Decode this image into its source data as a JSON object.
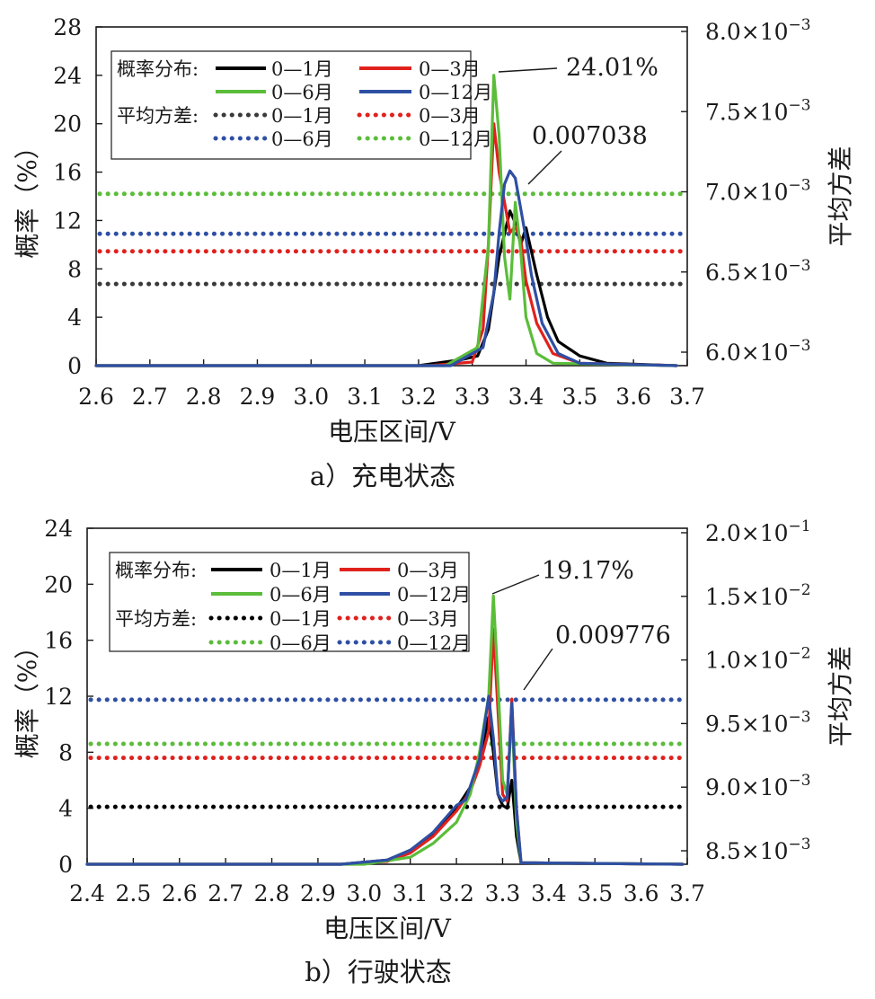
{
  "chart_data": [
    {
      "type": "line",
      "caption": "a）充电状态",
      "xlabel": "电压区间/V",
      "ylabel": "概率（%）",
      "y2label": "平均方差",
      "xlim": [
        2.6,
        3.7
      ],
      "xticks": [
        "2.6",
        "2.7",
        "2.8",
        "2.9",
        "3.0",
        "3.1",
        "3.2",
        "3.3",
        "3.4",
        "3.5",
        "3.6",
        "3.7"
      ],
      "ylim": [
        0,
        28
      ],
      "yticks": [
        "0",
        "4",
        "8",
        "12",
        "16",
        "20",
        "24",
        "28"
      ],
      "y2ticks": [
        {
          "m": "6.0",
          "e": "−3"
        },
        {
          "m": "6.5",
          "e": "−3"
        },
        {
          "m": "7.0",
          "e": "−3"
        },
        {
          "m": "7.5",
          "e": "−3"
        },
        {
          "m": "8.0",
          "e": "−3"
        }
      ],
      "legend": {
        "prob_title": "概率分布:",
        "var_title": "平均方差:",
        "prob_items": [
          {
            "name": "0—1月",
            "color": "#000000"
          },
          {
            "name": "0—3月",
            "color": "#e0211d"
          },
          {
            "name": "0—6月",
            "color": "#5bbd3a"
          },
          {
            "name": "0—12月",
            "color": "#2e4fa3"
          }
        ],
        "var_items": [
          {
            "name": "0—1月",
            "color": "#3a3a3a"
          },
          {
            "name": "0—3月",
            "color": "#e0211d"
          },
          {
            "name": "0—6月",
            "color": "#2e4fa3"
          },
          {
            "name": "0—12月",
            "color": "#5bbd3a"
          }
        ]
      },
      "variance_lines": [
        {
          "name": "0—1月",
          "color": "#3a3a3a",
          "y": 6.75
        },
        {
          "name": "0—3月",
          "color": "#e0211d",
          "y": 9.45
        },
        {
          "name": "0—6月",
          "color": "#2e4fa3",
          "y": 10.9
        },
        {
          "name": "0—12月",
          "color": "#5bbd3a",
          "y": 14.2
        }
      ],
      "series": [
        {
          "name": "0—1月",
          "color": "#000000",
          "x": [
            2.6,
            3.2,
            3.28,
            3.31,
            3.33,
            3.35,
            3.37,
            3.38,
            3.39,
            3.4,
            3.42,
            3.44,
            3.46,
            3.5,
            3.55,
            3.68
          ],
          "y": [
            0,
            0,
            0.5,
            0.8,
            3.0,
            9.0,
            12.8,
            11.8,
            10.0,
            11.4,
            7.5,
            4.0,
            2.0,
            0.8,
            0.2,
            0
          ]
        },
        {
          "name": "0—3月",
          "color": "#e0211d",
          "x": [
            2.6,
            3.22,
            3.3,
            3.32,
            3.33,
            3.34,
            3.35,
            3.36,
            3.37,
            3.38,
            3.39,
            3.4,
            3.42,
            3.45,
            3.5,
            3.68
          ],
          "y": [
            0,
            0,
            0.3,
            3.0,
            10.0,
            20.0,
            16.0,
            13.5,
            11.0,
            11.5,
            10.5,
            7.0,
            3.5,
            1.0,
            0.2,
            0
          ]
        },
        {
          "name": "0—6月",
          "color": "#5bbd3a",
          "x": [
            2.6,
            3.25,
            3.31,
            3.33,
            3.34,
            3.35,
            3.36,
            3.37,
            3.38,
            3.39,
            3.4,
            3.42,
            3.45,
            3.68
          ],
          "y": [
            0,
            0,
            1.5,
            10.0,
            24.01,
            19.0,
            9.0,
            5.5,
            13.5,
            9.5,
            4.0,
            1.0,
            0.2,
            0
          ]
        },
        {
          "name": "0—12月",
          "color": "#2e4fa3",
          "x": [
            2.6,
            3.26,
            3.32,
            3.34,
            3.35,
            3.36,
            3.37,
            3.38,
            3.39,
            3.4,
            3.41,
            3.43,
            3.46,
            3.5,
            3.68
          ],
          "y": [
            0,
            0,
            1.5,
            6.0,
            11.0,
            15.0,
            16.1,
            15.5,
            13.0,
            10.5,
            7.5,
            3.5,
            1.0,
            0.2,
            0
          ]
        }
      ],
      "annotations": [
        {
          "text": "24.01%",
          "x": 3.345,
          "y": 24.01
        },
        {
          "text": "0.007038",
          "x": 3.39,
          "y": 14.2
        }
      ]
    },
    {
      "type": "line",
      "caption": "b）行驶状态",
      "xlabel": "电压区间/V",
      "ylabel": "概率（%）",
      "y2label": "平均方差",
      "xlim": [
        2.4,
        3.7
      ],
      "xticks": [
        "2.4",
        "2.5",
        "2.6",
        "2.7",
        "2.8",
        "2.9",
        "3.0",
        "3.1",
        "3.2",
        "3.3",
        "3.4",
        "3.5",
        "3.6",
        "3.7"
      ],
      "ylim": [
        0,
        24
      ],
      "yticks": [
        "0",
        "4",
        "8",
        "12",
        "16",
        "20",
        "24"
      ],
      "y2ticks": [
        {
          "m": "8.5",
          "e": "−3"
        },
        {
          "m": "9.0",
          "e": "−3"
        },
        {
          "m": "9.5",
          "e": "−3"
        },
        {
          "m": "1.0",
          "e": "−2"
        },
        {
          "m": "1.5",
          "e": "−2"
        },
        {
          "m": "2.0",
          "e": "−1"
        }
      ],
      "legend": {
        "prob_title": "概率分布:",
        "var_title": "平均方差:",
        "prob_items": [
          {
            "name": "0—1月",
            "color": "#000000"
          },
          {
            "name": "0—3月",
            "color": "#e0211d"
          },
          {
            "name": "0—6月",
            "color": "#5bbd3a"
          },
          {
            "name": "0—12月",
            "color": "#2e4fa3"
          }
        ],
        "var_items": [
          {
            "name": "0—1月",
            "color": "#000000"
          },
          {
            "name": "0—3月",
            "color": "#e0211d"
          },
          {
            "name": "0—6月",
            "color": "#5bbd3a"
          },
          {
            "name": "0—12月",
            "color": "#2e4fa3"
          }
        ]
      },
      "variance_lines": [
        {
          "name": "0—1月",
          "color": "#000000",
          "y": 4.1
        },
        {
          "name": "0—3月",
          "color": "#e0211d",
          "y": 7.6
        },
        {
          "name": "0—6月",
          "color": "#5bbd3a",
          "y": 8.6
        },
        {
          "name": "0—12月",
          "color": "#2e4fa3",
          "y": 11.75
        }
      ],
      "series": [
        {
          "name": "0—1月",
          "color": "#000000",
          "x": [
            2.4,
            2.95,
            3.05,
            3.1,
            3.15,
            3.2,
            3.23,
            3.25,
            3.27,
            3.28,
            3.29,
            3.3,
            3.31,
            3.32,
            3.33,
            3.34,
            3.69
          ],
          "y": [
            0,
            0,
            0.3,
            1.0,
            2.2,
            4.0,
            5.5,
            7.5,
            10.5,
            8.0,
            5.0,
            4.2,
            4.0,
            6.0,
            2.0,
            0.1,
            0
          ]
        },
        {
          "name": "0—3月",
          "color": "#e0211d",
          "x": [
            2.4,
            2.95,
            3.05,
            3.1,
            3.15,
            3.2,
            3.23,
            3.25,
            3.27,
            3.28,
            3.29,
            3.3,
            3.31,
            3.32,
            3.33,
            3.34,
            3.69
          ],
          "y": [
            0,
            0,
            0.2,
            0.8,
            2.0,
            3.8,
            5.2,
            7.0,
            9.5,
            16.8,
            11.0,
            5.0,
            4.5,
            11.8,
            4.0,
            0.1,
            0
          ]
        },
        {
          "name": "0—6月",
          "color": "#5bbd3a",
          "x": [
            2.4,
            3.0,
            3.1,
            3.15,
            3.2,
            3.23,
            3.25,
            3.27,
            3.28,
            3.29,
            3.3,
            3.31,
            3.32,
            3.33,
            3.34,
            3.69
          ],
          "y": [
            0,
            0,
            0.5,
            1.5,
            3.0,
            5.0,
            8.0,
            12.0,
            19.17,
            13.0,
            6.0,
            5.0,
            11.0,
            3.0,
            0.1,
            0
          ]
        },
        {
          "name": "0—12月",
          "color": "#2e4fa3",
          "x": [
            2.4,
            2.95,
            3.05,
            3.1,
            3.15,
            3.2,
            3.22,
            3.25,
            3.27,
            3.28,
            3.29,
            3.3,
            3.31,
            3.32,
            3.33,
            3.34,
            3.69
          ],
          "y": [
            0,
            0,
            0.3,
            1.0,
            2.3,
            4.2,
            4.6,
            7.5,
            12.0,
            9.0,
            5.0,
            4.5,
            4.8,
            11.5,
            4.0,
            0.1,
            0
          ]
        }
      ],
      "annotations": [
        {
          "text": "19.17%",
          "x": 3.285,
          "y": 19.17
        },
        {
          "text": "0.009776",
          "x": 3.34,
          "y": 11.75
        }
      ]
    }
  ]
}
